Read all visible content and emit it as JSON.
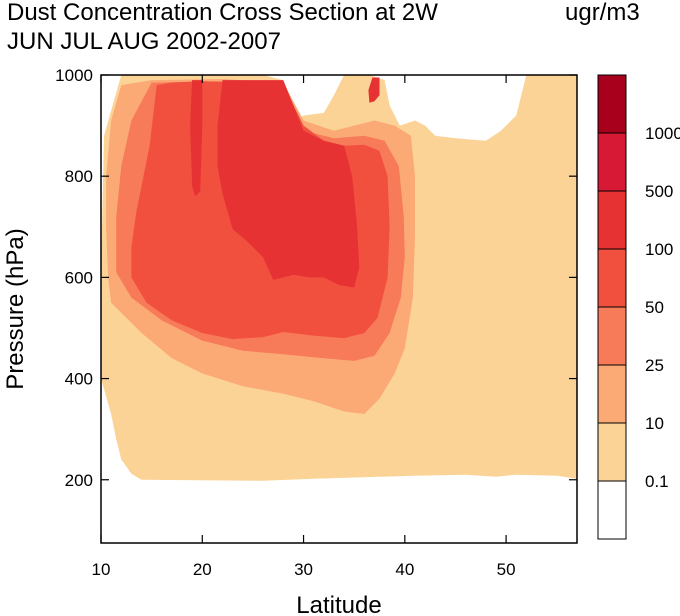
{
  "chart_data": {
    "type": "filled-contour",
    "title_line1": "Dust Concentration Cross Section at 2W",
    "title_line2": "JUN JUL AUG 2002-2007",
    "units": "ugr/m3",
    "xlabel": "Latitude",
    "ylabel": "Pressure (hPa)",
    "xlim": [
      10,
      57
    ],
    "ylim": [
      1000,
      75
    ],
    "xticks": [
      10,
      20,
      30,
      40,
      50
    ],
    "yticks": [
      200,
      400,
      600,
      800,
      1000
    ],
    "levels": [
      "0.1",
      "10",
      "25",
      "50",
      "100",
      "500",
      "1000"
    ],
    "colors": [
      "#ffffff",
      "#fcd397",
      "#fbaa76",
      "#f77a59",
      "#f1503f",
      "#e73234",
      "#d81935",
      "#a8001c"
    ],
    "contours": [
      {
        "color": "#fcd397",
        "points": [
          [
            10,
            610
          ],
          [
            10,
            400
          ],
          [
            11,
            330
          ],
          [
            11.5,
            280
          ],
          [
            12,
            240
          ],
          [
            13,
            212
          ],
          [
            14,
            200
          ],
          [
            26,
            198
          ],
          [
            31,
            202
          ],
          [
            36,
            205
          ],
          [
            41,
            208
          ],
          [
            46,
            210
          ],
          [
            49,
            206
          ],
          [
            51,
            210
          ],
          [
            55,
            208
          ],
          [
            57,
            202
          ],
          [
            57,
            1000
          ],
          [
            52,
            1000
          ],
          [
            51.5,
            960
          ],
          [
            51,
            920
          ],
          [
            49.5,
            890
          ],
          [
            48,
            870
          ],
          [
            45,
            875
          ],
          [
            43,
            880
          ],
          [
            42,
            900
          ],
          [
            41,
            910
          ],
          [
            39.5,
            900
          ],
          [
            38.5,
            940
          ],
          [
            38,
            990
          ],
          [
            36.5,
            1000
          ],
          [
            34,
            1000
          ],
          [
            33,
            960
          ],
          [
            32,
            925
          ],
          [
            30,
            920
          ],
          [
            28.5,
            900
          ],
          [
            28,
            990
          ],
          [
            26,
            1000
          ],
          [
            12,
            1000
          ],
          [
            10.3,
            880
          ]
        ]
      },
      {
        "color": "#fbaa76",
        "points": [
          [
            11,
            550
          ],
          [
            14,
            490
          ],
          [
            17,
            440
          ],
          [
            20,
            410
          ],
          [
            24,
            385
          ],
          [
            28,
            370
          ],
          [
            31,
            355
          ],
          [
            34,
            335
          ],
          [
            36,
            330
          ],
          [
            37.5,
            360
          ],
          [
            39,
            410
          ],
          [
            40,
            460
          ],
          [
            40.8,
            560
          ],
          [
            41,
            680
          ],
          [
            41,
            800
          ],
          [
            40.6,
            880
          ],
          [
            39,
            900
          ],
          [
            37,
            910
          ],
          [
            35,
            900
          ],
          [
            33,
            890
          ],
          [
            30,
            910
          ],
          [
            28,
            985
          ],
          [
            22,
            992
          ],
          [
            15,
            990
          ],
          [
            12,
            980
          ],
          [
            11,
            910
          ],
          [
            10.5,
            800
          ],
          [
            10.5,
            700
          ],
          [
            10.7,
            600
          ]
        ]
      },
      {
        "color": "#f77a59",
        "points": [
          [
            11.5,
            610
          ],
          [
            13,
            560
          ],
          [
            16,
            515
          ],
          [
            20,
            475
          ],
          [
            24,
            455
          ],
          [
            28,
            448
          ],
          [
            32,
            440
          ],
          [
            35,
            435
          ],
          [
            37,
            445
          ],
          [
            38.5,
            490
          ],
          [
            39.6,
            560
          ],
          [
            40,
            640
          ],
          [
            39.9,
            720
          ],
          [
            39.4,
            820
          ],
          [
            38,
            870
          ],
          [
            36,
            880
          ],
          [
            33,
            875
          ],
          [
            30,
            890
          ],
          [
            28,
            980
          ],
          [
            22,
            988
          ],
          [
            15,
            985
          ],
          [
            13,
            910
          ],
          [
            12,
            820
          ],
          [
            11.5,
            720
          ]
        ]
      },
      {
        "color": "#f1503f",
        "points": [
          [
            13,
            600
          ],
          [
            14.5,
            550
          ],
          [
            17,
            515
          ],
          [
            20,
            490
          ],
          [
            23,
            478
          ],
          [
            26,
            482
          ],
          [
            28,
            492
          ],
          [
            31,
            485
          ],
          [
            34,
            480
          ],
          [
            36,
            490
          ],
          [
            37.3,
            520
          ],
          [
            38.3,
            600
          ],
          [
            38.5,
            700
          ],
          [
            38.3,
            800
          ],
          [
            37.5,
            850
          ],
          [
            36,
            862
          ],
          [
            34,
            860
          ],
          [
            32,
            870
          ],
          [
            30,
            900
          ],
          [
            28.5,
            960
          ],
          [
            28,
            985
          ],
          [
            23,
            985
          ],
          [
            20,
            988
          ],
          [
            17,
            985
          ],
          [
            15.5,
            980
          ],
          [
            14.8,
            860
          ],
          [
            13.5,
            730
          ],
          [
            13,
            660
          ]
        ]
      },
      {
        "color": "#e73234",
        "points": [
          [
            22,
            765
          ],
          [
            23,
            695
          ],
          [
            24.5,
            670
          ],
          [
            26,
            640
          ],
          [
            27,
            595
          ],
          [
            28,
            600
          ],
          [
            29,
            605
          ],
          [
            30.5,
            600
          ],
          [
            32,
            600
          ],
          [
            33.5,
            585
          ],
          [
            35,
            580
          ],
          [
            35.5,
            620
          ],
          [
            35.3,
            700
          ],
          [
            34.8,
            800
          ],
          [
            34,
            860
          ],
          [
            32,
            870
          ],
          [
            30,
            890
          ],
          [
            28,
            990
          ],
          [
            22,
            990
          ],
          [
            21.5,
            900
          ],
          [
            21.5,
            820
          ]
        ]
      },
      {
        "color": "#e73234",
        "points": [
          [
            19,
            780
          ],
          [
            19.3,
            760
          ],
          [
            19.8,
            770
          ],
          [
            20,
            900
          ],
          [
            20,
            990
          ],
          [
            19,
            990
          ],
          [
            18.8,
            900
          ]
        ]
      },
      {
        "color": "#e73234",
        "points": [
          [
            36.5,
            945
          ],
          [
            37,
            948
          ],
          [
            37.5,
            960
          ],
          [
            37.5,
            995
          ],
          [
            36.8,
            995
          ],
          [
            36.4,
            970
          ]
        ]
      }
    ]
  }
}
